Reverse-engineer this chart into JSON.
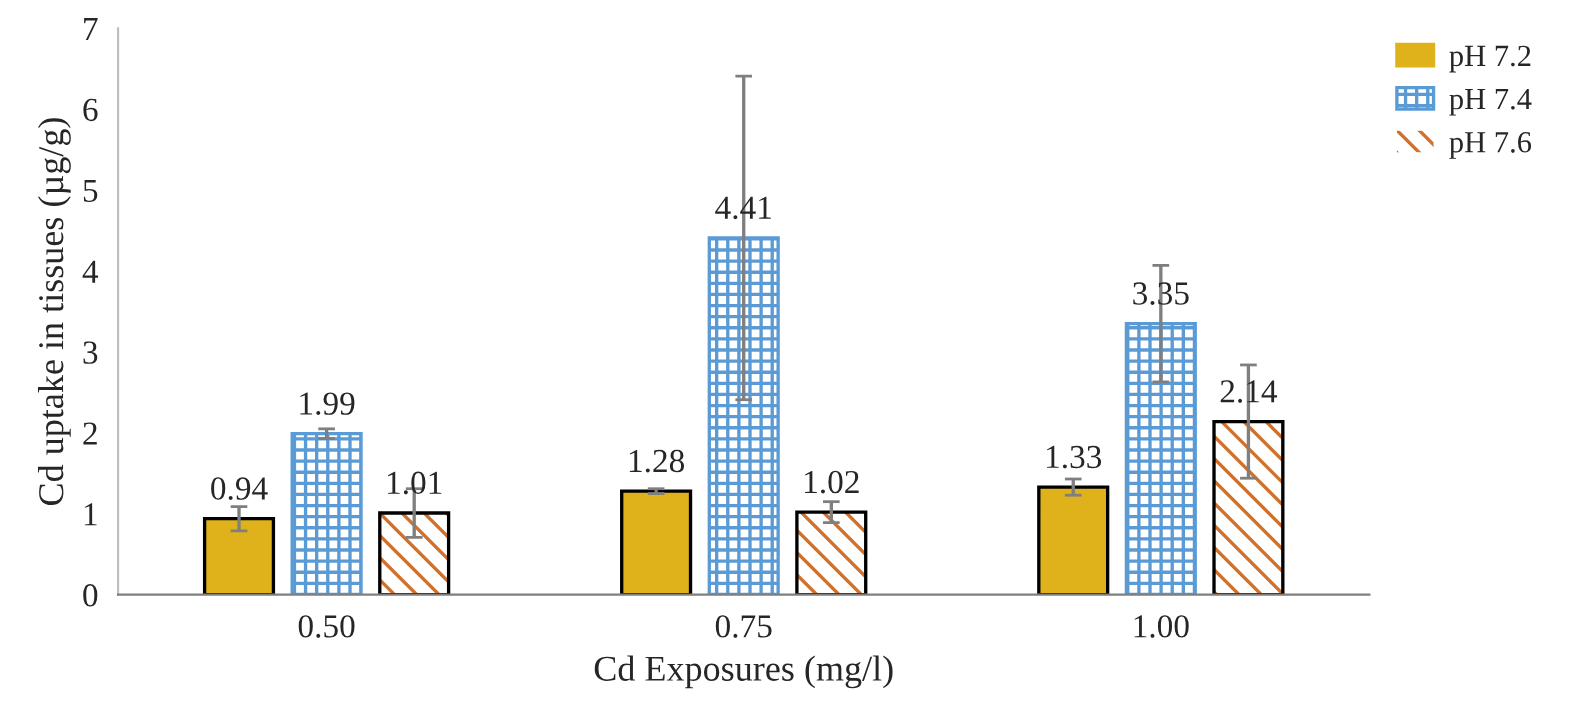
{
  "chart_data": {
    "type": "bar",
    "xlabel": "Cd Exposures (mg/l)",
    "ylabel": "Cd uptake in tissues (µg/g)",
    "categories": [
      "0.50",
      "0.75",
      "1.00"
    ],
    "series": [
      {
        "name": "pH 7.2",
        "color": "#dfb21c",
        "values": [
          0.94,
          1.28,
          1.33
        ],
        "errors": [
          0.15,
          0.03,
          0.1
        ]
      },
      {
        "name": "pH 7.4",
        "color": "#5b9bd5",
        "values": [
          1.99,
          4.41,
          3.35
        ],
        "errors": [
          0.06,
          2.0,
          0.72
        ]
      },
      {
        "name": "pH 7.6",
        "color": "#d0702a",
        "values": [
          1.01,
          1.02,
          2.14
        ],
        "errors": [
          0.3,
          0.13,
          0.7
        ]
      }
    ],
    "ylim": [
      0,
      7
    ],
    "yticks": [
      0,
      1,
      2,
      3,
      4,
      5,
      6,
      7
    ],
    "data_labels": true,
    "legend": "top right",
    "grid": false
  }
}
